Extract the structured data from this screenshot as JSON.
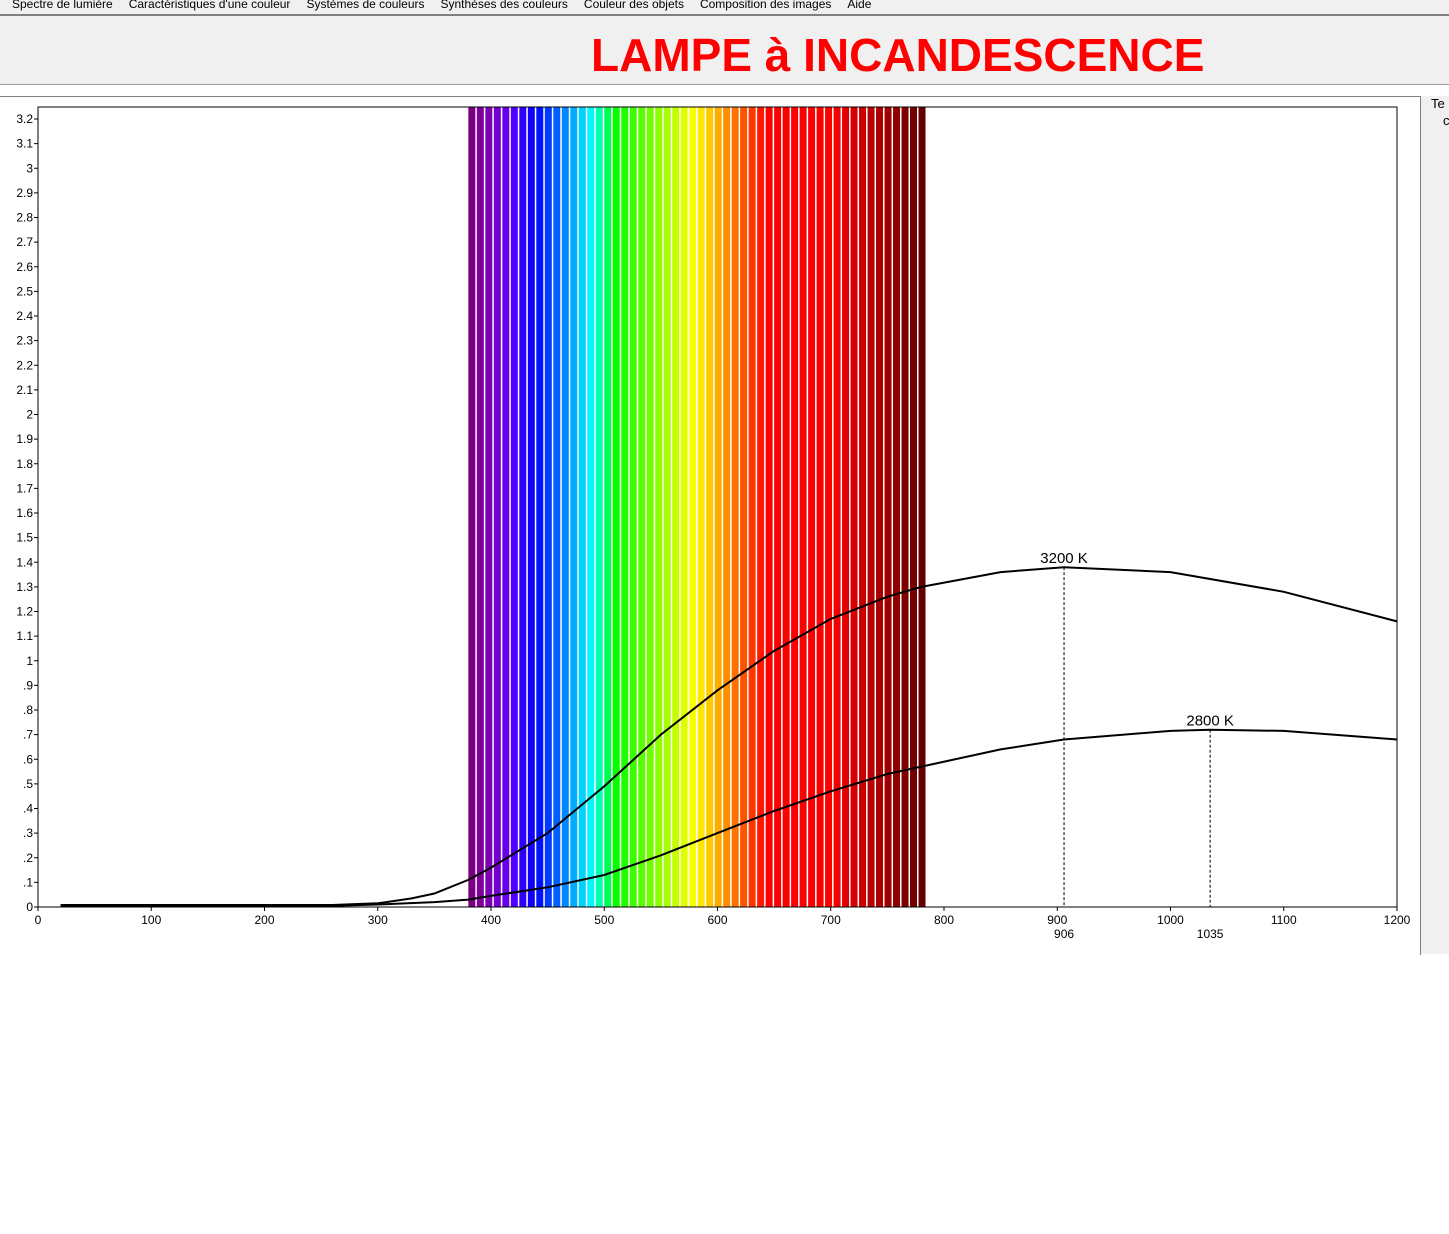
{
  "menu": [
    "Spectre de lumière",
    "Caractéristiques d'une couleur",
    "Systèmes de couleurs",
    "Synthèses des couleurs",
    "Couleur des objets",
    "Composition des images",
    "Aide"
  ],
  "title": "LAMPE à INCANDESCENCE",
  "side_text": [
    "Te",
    "c"
  ],
  "chart_data": {
    "type": "line",
    "title": "",
    "xlim": [
      0,
      1200
    ],
    "ylim": [
      0,
      3.2
    ],
    "xticks": [
      0,
      100,
      200,
      300,
      400,
      500,
      600,
      700,
      800,
      900,
      1000,
      1100,
      1200
    ],
    "yticks": [
      "0",
      ".1",
      ".2",
      ".3",
      ".4",
      ".5",
      ".6",
      ".7",
      ".8",
      ".9",
      "1",
      "1.1",
      "1.2",
      "1.3",
      "1.4",
      "1.5",
      "1.6",
      "1.7",
      "1.8",
      "1.9",
      "2",
      "2.1",
      "2.2",
      "2.3",
      "2.4",
      "2.5",
      "2.6",
      "2.7",
      "2.8",
      "2.9",
      "3",
      "3.1",
      "3.2"
    ],
    "visible_spectrum_band": [
      380,
      780
    ],
    "series": [
      {
        "name": "3200 K",
        "peak_x": 906,
        "peak_label": "906",
        "x": [
          20,
          100,
          200,
          260,
          300,
          330,
          350,
          380,
          400,
          450,
          500,
          550,
          600,
          650,
          700,
          750,
          780,
          850,
          906,
          1000,
          1100,
          1200
        ],
        "y": [
          0.008,
          0.008,
          0.008,
          0.008,
          0.015,
          0.035,
          0.055,
          0.11,
          0.16,
          0.3,
          0.49,
          0.7,
          0.88,
          1.04,
          1.17,
          1.26,
          1.3,
          1.36,
          1.38,
          1.36,
          1.28,
          1.16
        ]
      },
      {
        "name": "2800 K",
        "peak_x": 1035,
        "peak_label": "1035",
        "x": [
          20,
          100,
          200,
          260,
          300,
          350,
          380,
          400,
          450,
          500,
          550,
          600,
          650,
          700,
          750,
          780,
          850,
          906,
          1000,
          1035,
          1100,
          1200
        ],
        "y": [
          0.005,
          0.005,
          0.005,
          0.005,
          0.01,
          0.02,
          0.03,
          0.045,
          0.08,
          0.13,
          0.21,
          0.3,
          0.39,
          0.47,
          0.54,
          0.57,
          0.64,
          0.68,
          0.715,
          0.72,
          0.715,
          0.68
        ]
      }
    ]
  }
}
